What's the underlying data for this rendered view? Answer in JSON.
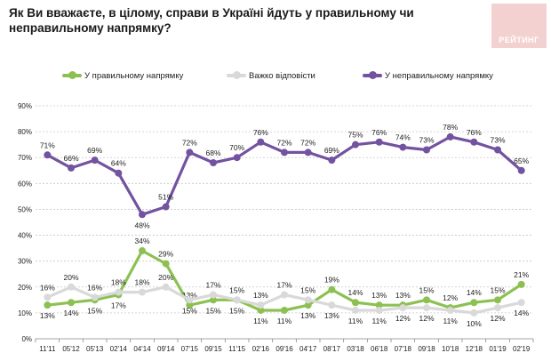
{
  "title": "Як Ви вважаєте, в цілому, справи в Україні йдуть у правильному чи неправильному напрямку?",
  "logo": {
    "text": "РЕЙТИНГ"
  },
  "colors": {
    "right": "#8cc152",
    "hard": "#d9d9d9",
    "wrong": "#7352a0",
    "grid": "#c8c8c8",
    "axis": "#888888",
    "text": "#222222"
  },
  "chart_data": {
    "type": "line",
    "title": "Як Ви вважаєте, в цілому, справи в Україні йдуть у правильному чи неправильному напрямку?",
    "categories": [
      "11'11",
      "05'12",
      "05'13",
      "02'14",
      "04'14",
      "09'14",
      "07'15",
      "09'15",
      "11'15",
      "02'16",
      "09'16",
      "04'17",
      "08'17",
      "03'18",
      "06'18",
      "07'18",
      "09'18",
      "10'18",
      "12'18",
      "01'19",
      "02'19"
    ],
    "ylim": [
      0,
      90
    ],
    "yticks": [
      0,
      10,
      20,
      30,
      40,
      50,
      60,
      70,
      80,
      90
    ],
    "ytick_labels": [
      "0%",
      "10%",
      "20%",
      "30%",
      "40%",
      "50%",
      "60%",
      "70%",
      "80%",
      "90%"
    ],
    "grid": true,
    "legend_position": "top",
    "series": [
      {
        "key": "right",
        "name": "У правильному напрямку",
        "values": [
          13,
          14,
          15,
          17,
          34,
          29,
          13,
          15,
          15,
          11,
          11,
          13,
          19,
          14,
          13,
          13,
          15,
          12,
          14,
          15,
          21
        ]
      },
      {
        "key": "hard",
        "name": "Важко відповісти",
        "values": [
          16,
          20,
          16,
          18,
          18,
          20,
          15,
          17,
          15,
          13,
          17,
          15,
          13,
          11,
          11,
          12,
          12,
          11,
          10,
          12,
          14
        ]
      },
      {
        "key": "wrong",
        "name": "У неправильному напрямку",
        "values": [
          71,
          66,
          69,
          64,
          48,
          51,
          72,
          68,
          70,
          76,
          72,
          72,
          69,
          75,
          76,
          74,
          73,
          78,
          76,
          73,
          65
        ]
      }
    ],
    "data_labels": {
      "right": [
        "13%",
        "14%",
        "15%",
        "17%",
        "34%",
        "29%",
        "13%",
        "15%",
        "15%",
        "11%",
        "11%",
        "13%",
        "19%",
        "14%",
        "13%",
        "13%",
        "15%",
        "12%",
        "14%",
        "15%",
        "21%"
      ],
      "hard": [
        "16%",
        "20%",
        "16%",
        "18%",
        "18%",
        "20%",
        "15%",
        "17%",
        "15%",
        "13%",
        "17%",
        "15%",
        "13%",
        "11%",
        "11%",
        "12%",
        "12%",
        "11%",
        "10%",
        "12%",
        "14%"
      ],
      "wrong": [
        "71%",
        "66%",
        "69%",
        "64%",
        "48%",
        "51%",
        "72%",
        "68%",
        "70%",
        "76%",
        "72%",
        "72%",
        "69%",
        "75%",
        "76%",
        "74%",
        "73%",
        "78%",
        "76%",
        "73%",
        "65%"
      ]
    },
    "label_side": {
      "right": [
        "below",
        "below",
        "below",
        "below",
        "above",
        "above",
        "above",
        "below",
        "below",
        "below",
        "below",
        "below",
        "above",
        "above",
        "above",
        "above",
        "above",
        "above",
        "above",
        "above",
        "above"
      ],
      "hard": [
        "above",
        "above",
        "above",
        "above",
        "above",
        "above",
        "below",
        "above",
        "above",
        "above",
        "above",
        "above",
        "below",
        "below",
        "below",
        "below",
        "below",
        "below",
        "below",
        "below",
        "below"
      ],
      "wrong": [
        "above",
        "above",
        "above",
        "above",
        "below",
        "above",
        "above",
        "above",
        "above",
        "above",
        "above",
        "above",
        "above",
        "above",
        "above",
        "above",
        "above",
        "above",
        "above",
        "above",
        "above"
      ]
    }
  }
}
